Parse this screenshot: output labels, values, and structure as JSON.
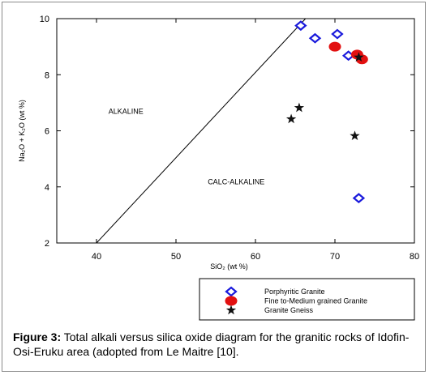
{
  "chart_data": {
    "type": "scatter",
    "title": "",
    "xlabel": "SiO₂ (wt %)",
    "ylabel": "Na₂O + K₂O (wt %)",
    "xlim": [
      35,
      80
    ],
    "ylim": [
      2,
      10
    ],
    "xticks": [
      40,
      50,
      60,
      70,
      80
    ],
    "yticks": [
      2,
      4,
      6,
      8,
      10
    ],
    "grid": false,
    "legend_position": "bottom-right, below plot",
    "boundary_line": {
      "x": [
        40,
        66.3
      ],
      "y": [
        2,
        10
      ]
    },
    "region_labels": [
      {
        "text": "ALKALINE",
        "x": 41.5,
        "y": 6.6
      },
      {
        "text": "CALC-ALKALINE",
        "x": 54,
        "y": 4.1
      }
    ],
    "series": [
      {
        "name": "Porphyritic Granite",
        "marker": "diamond-open",
        "color": "#1a1adc",
        "x": [
          65.7,
          67.5,
          70.3,
          71.7,
          73.0
        ],
        "y": [
          9.75,
          9.3,
          9.45,
          8.68,
          3.6
        ]
      },
      {
        "name": "Fine to-Medium grained Granite",
        "marker": "circle-filled",
        "color": "#e21010",
        "x": [
          70.0,
          72.8,
          73.4
        ],
        "y": [
          9.0,
          8.72,
          8.55
        ]
      },
      {
        "name": "Granite Gneiss",
        "marker": "star",
        "color": "#111111",
        "x": [
          73.0,
          65.5,
          64.5,
          72.5
        ],
        "y": [
          8.62,
          6.82,
          6.42,
          5.82
        ]
      }
    ]
  },
  "caption": {
    "label": "Figure 3:",
    "text": " Total alkali versus silica oxide diagram for the granitic rocks of Idofin-Osi-Eruku area (adopted from Le Maitre [10]."
  }
}
